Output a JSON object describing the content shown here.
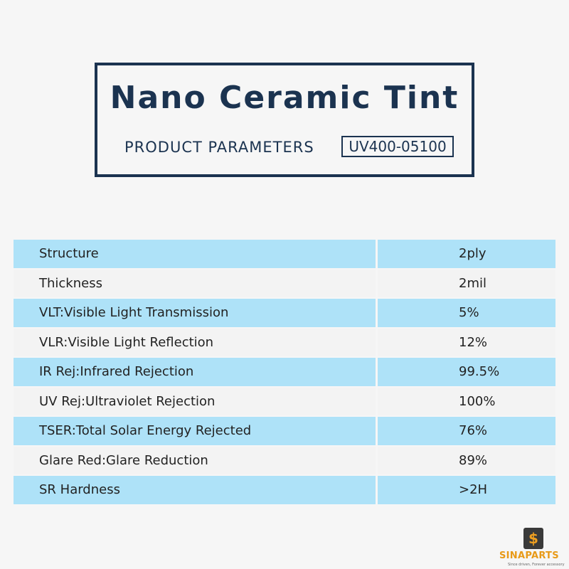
{
  "header": {
    "title": "Nano Ceramic Tint",
    "subtitle": "PRODUCT PARAMETERS",
    "code": "UV400-05100"
  },
  "table": {
    "rows": [
      [
        "Structure",
        "2ply"
      ],
      [
        "Thickness",
        "2mil"
      ],
      [
        "VLT:Visible Light Transmission",
        "5%"
      ],
      [
        "VLR:Visible Light Reflection",
        "12%"
      ],
      [
        "IR Rej:Infrared Rejection",
        "99.5%"
      ],
      [
        "UV Rej:Ultraviolet Rejection",
        "100%"
      ],
      [
        "TSER:Total Solar Energy Rejected",
        "76%"
      ],
      [
        "Glare Red:Glare Reduction",
        "89%"
      ],
      [
        "SR Hardness",
        ">2H"
      ]
    ]
  },
  "logo": {
    "name": "SINAPARTS",
    "tagline": "Since driven, Forever accessory"
  }
}
